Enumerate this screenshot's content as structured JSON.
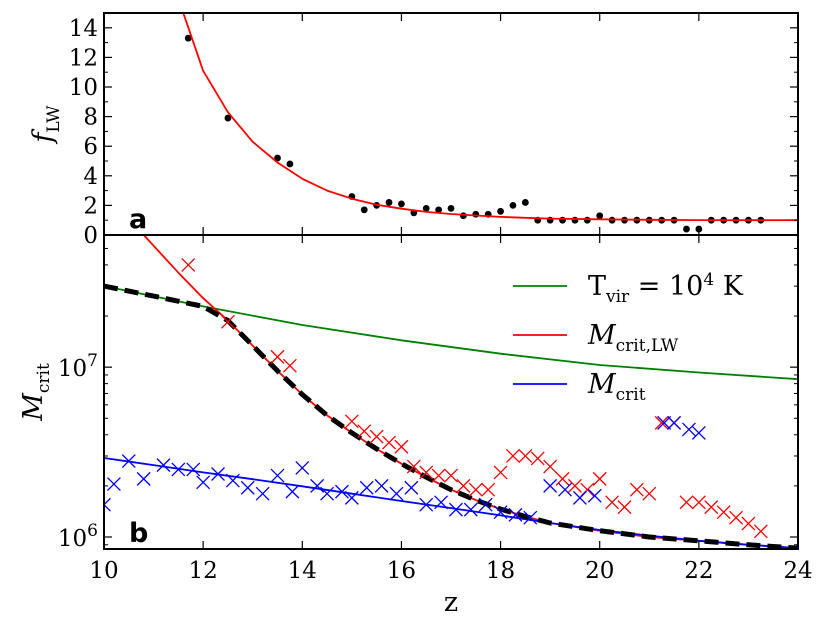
{
  "chart_data": [
    {
      "type": "scatter",
      "panel_label": "a",
      "ylabel": "f",
      "ylabel_subscript": "LW",
      "xlim": [
        10,
        24
      ],
      "ylim": [
        0,
        15
      ],
      "yticks": [
        0,
        2,
        4,
        6,
        8,
        10,
        12,
        14
      ],
      "series": [
        {
          "name": "data",
          "marker": "dot",
          "color": "#000000",
          "x": [
            11.7,
            12.5,
            13.5,
            13.75,
            15.0,
            15.25,
            15.5,
            15.75,
            16.0,
            16.25,
            16.5,
            16.75,
            17.0,
            17.25,
            17.5,
            17.75,
            18.0,
            18.25,
            18.5,
            18.75,
            19.0,
            19.25,
            19.5,
            19.75,
            20.0,
            20.25,
            20.5,
            20.75,
            21.0,
            21.25,
            21.5,
            21.75,
            22.0,
            22.25,
            22.5,
            22.75,
            23.0,
            23.25
          ],
          "y": [
            13.3,
            7.9,
            5.2,
            4.8,
            2.6,
            1.7,
            2.0,
            2.2,
            2.1,
            1.5,
            1.8,
            1.7,
            1.8,
            1.3,
            1.4,
            1.4,
            1.6,
            2.0,
            2.2,
            1.0,
            1.0,
            1.0,
            1.0,
            1.0,
            1.3,
            1.0,
            1.0,
            1.0,
            1.0,
            1.0,
            1.0,
            0.4,
            0.4,
            1.0,
            1.0,
            1.0,
            1.0,
            1.0
          ]
        },
        {
          "name": "fit",
          "marker": "line",
          "color": "#ff0000",
          "x": [
            11.6,
            12.0,
            12.5,
            13.0,
            13.5,
            14.0,
            14.5,
            15.0,
            15.5,
            16.0,
            16.5,
            17.0,
            17.5,
            18.0,
            18.5,
            19.0,
            20.0,
            21.0,
            22.0,
            23.0,
            24.0
          ],
          "y": [
            15.0,
            11.1,
            8.3,
            6.3,
            4.9,
            3.8,
            3.0,
            2.45,
            2.05,
            1.78,
            1.56,
            1.42,
            1.32,
            1.22,
            1.16,
            1.11,
            1.06,
            1.03,
            1.01,
            1.0,
            1.0
          ]
        }
      ]
    },
    {
      "type": "line",
      "panel_label": "b",
      "ylabel": "M",
      "ylabel_subscript": "crit",
      "xlabel": "z",
      "xlim": [
        10,
        24
      ],
      "yscale": "log",
      "ylim": [
        850000,
        60000000
      ],
      "xticks": [
        10,
        12,
        14,
        16,
        18,
        20,
        22,
        24
      ],
      "yticks": [
        1000000,
        10000000
      ],
      "ytick_labels": [
        {
          "base": "10",
          "exp": "6"
        },
        {
          "base": "10",
          "exp": "7"
        }
      ],
      "legend": {
        "position": "top-right",
        "entries": [
          {
            "text": "T",
            "sub": "vir",
            "tail": " = 10",
            "sup": "4",
            "unit": " K",
            "color": "#008000",
            "italic": false
          },
          {
            "text": "M",
            "sub": "crit,LW",
            "color": "#ff0000",
            "italic": true
          },
          {
            "text": "M",
            "sub": "crit",
            "color": "#0000ff",
            "italic": true
          }
        ]
      },
      "series": [
        {
          "name": "T_vir = 10^4 K",
          "marker": "line",
          "color": "#008000",
          "x": [
            10,
            12,
            14,
            16,
            18,
            20,
            22,
            24
          ],
          "y": [
            30000000,
            22800000,
            17700000,
            14400000,
            12000000,
            10300000,
            9300000,
            8500000
          ]
        },
        {
          "name": "M_crit,LW",
          "marker": "line",
          "color": "#ff0000",
          "x": [
            10.8,
            11.5,
            12.0,
            12.5,
            13.0,
            13.5,
            14.0,
            14.5,
            15.0,
            15.5,
            16.0,
            16.5,
            17.0,
            17.5,
            18.0,
            18.5,
            19.0,
            20.0,
            21.0,
            22.0,
            23.0,
            24.0
          ],
          "y": [
            60000000,
            36000000,
            25500000,
            18800000,
            13400000,
            9500000,
            6900000,
            5200000,
            4100000,
            3300000,
            2700000,
            2250000,
            1900000,
            1650000,
            1460000,
            1320000,
            1210000,
            1090000,
            1000000,
            950000,
            900000,
            860000
          ]
        },
        {
          "name": "M_crit",
          "marker": "line",
          "color": "#0000ff",
          "x": [
            10,
            11,
            12,
            13,
            14,
            15,
            16,
            17,
            18,
            19,
            20,
            21,
            22,
            23,
            24
          ],
          "y": [
            2920000,
            2650000,
            2400000,
            2190000,
            1990000,
            1800000,
            1630000,
            1480000,
            1340000,
            1210000,
            1100000,
            1020000,
            950000,
            900000,
            860000
          ]
        },
        {
          "name": "dashed combined",
          "marker": "dashed",
          "color": "#000000",
          "x": [
            10,
            11,
            12,
            12.5,
            13.0,
            13.5,
            14.0,
            14.5,
            15.0,
            15.5,
            16.0,
            16.5,
            17.0,
            17.5,
            18.0,
            18.5,
            19.0,
            20.0,
            21.0,
            22.0,
            23.0,
            24.0
          ],
          "y": [
            30000000,
            26200000,
            22800000,
            18800000,
            13400000,
            9500000,
            6900000,
            5200000,
            4100000,
            3300000,
            2700000,
            2250000,
            1900000,
            1650000,
            1460000,
            1320000,
            1210000,
            1090000,
            1000000,
            950000,
            900000,
            860000
          ]
        },
        {
          "name": "LW crosses",
          "marker": "cross",
          "color": "#ff0000",
          "x": [
            11.7,
            12.5,
            13.5,
            13.75,
            15.0,
            15.25,
            15.5,
            15.75,
            16.0,
            16.25,
            16.5,
            16.75,
            17.0,
            17.25,
            17.5,
            17.75,
            18.0,
            18.25,
            18.5,
            18.75,
            19.0,
            19.25,
            19.5,
            19.75,
            20.0,
            20.25,
            20.5,
            20.75,
            21.0,
            21.25,
            21.5,
            21.75,
            22.0,
            22.25,
            22.5,
            22.75,
            23.0,
            23.25
          ],
          "y": [
            40000000,
            18500000,
            11500000,
            10200000,
            4800000,
            4200000,
            3900000,
            3600000,
            3400000,
            2600000,
            2400000,
            2300000,
            2300000,
            2000000,
            1900000,
            1900000,
            2400000,
            3000000,
            3000000,
            2900000,
            2600000,
            2200000,
            2000000,
            1900000,
            2200000,
            1600000,
            1500000,
            1900000,
            1800000,
            4700000,
            4700000,
            1600000,
            1600000,
            1500000,
            1400000,
            1300000,
            1200000,
            1080000
          ]
        },
        {
          "name": "crit crosses",
          "marker": "cross",
          "color": "#0000ff",
          "x": [
            10.0,
            10.2,
            10.5,
            10.8,
            11.2,
            11.5,
            11.8,
            12.0,
            12.3,
            12.6,
            12.9,
            13.2,
            13.5,
            13.8,
            14.0,
            14.3,
            14.5,
            14.8,
            15.0,
            15.3,
            15.6,
            15.9,
            16.2,
            16.5,
            16.8,
            17.1,
            17.4,
            17.7,
            18.0,
            18.3,
            18.6,
            19.0,
            19.3,
            19.6,
            19.9,
            21.3,
            21.5,
            21.8,
            22.0
          ],
          "y": [
            1550000,
            2050000,
            2800000,
            2200000,
            2650000,
            2500000,
            2500000,
            2100000,
            2350000,
            2150000,
            1950000,
            1800000,
            2300000,
            1850000,
            2550000,
            2000000,
            1800000,
            1850000,
            1700000,
            1950000,
            2000000,
            1800000,
            1950000,
            1550000,
            1600000,
            1450000,
            1450000,
            1550000,
            1400000,
            1350000,
            1300000,
            2000000,
            1900000,
            1700000,
            1750000,
            4700000,
            4700000,
            4300000,
            4100000
          ]
        }
      ]
    }
  ]
}
